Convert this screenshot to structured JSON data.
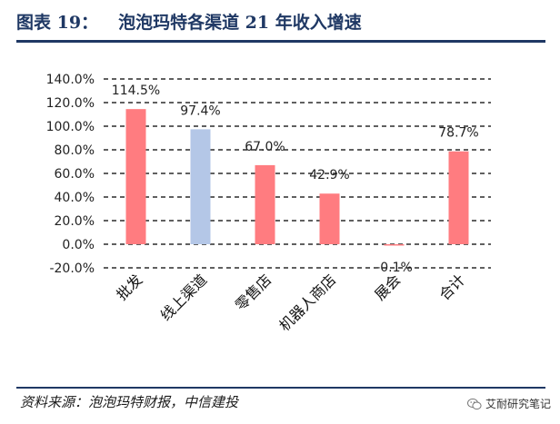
{
  "header": {
    "figure_number": "图表 19：",
    "title": "泡泡玛特各渠道 21 年收入增速"
  },
  "footer": {
    "source": "资料来源：泡泡玛特财报，中信建投",
    "watermark": "艾耐研究笔记",
    "watermark_icon": "wechat-icon"
  },
  "colors": {
    "accent": "#1f3864",
    "bar_default": "#ff7c80",
    "bar_highlight": "#b4c7e7"
  },
  "chart_data": {
    "type": "bar",
    "categories": [
      "批发",
      "线上渠道",
      "零售店",
      "机器人商店",
      "展会",
      "合计"
    ],
    "values": [
      114.5,
      97.4,
      67.0,
      42.9,
      -0.1,
      78.7
    ],
    "data_labels": [
      "114.5%",
      "97.4%",
      "67.0%",
      "42.9%",
      "-0.1%",
      "78.7%"
    ],
    "bar_colors": [
      "#ff7c80",
      "#b4c7e7",
      "#ff7c80",
      "#ff7c80",
      "#ff7c80",
      "#ff7c80"
    ],
    "ylim": [
      -20,
      140
    ],
    "yticks": [
      -20,
      0,
      20,
      40,
      60,
      80,
      100,
      120,
      140
    ],
    "ytick_labels": [
      "-20.0%",
      "0.0%",
      "20.0%",
      "40.0%",
      "60.0%",
      "80.0%",
      "100.0%",
      "120.0%",
      "140.0%"
    ],
    "grid": true,
    "legend": "none"
  }
}
